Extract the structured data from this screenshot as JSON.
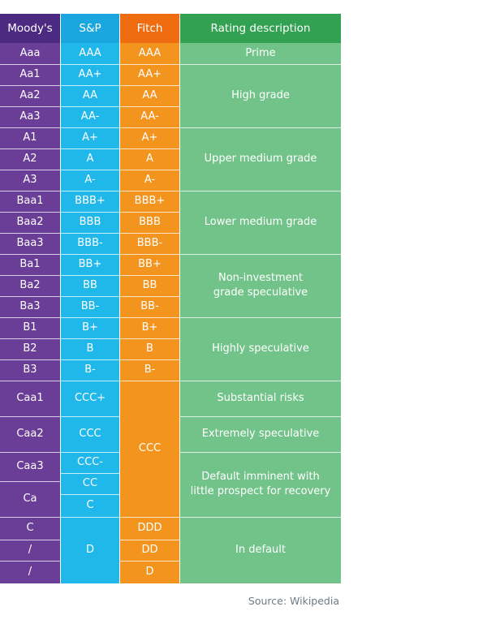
{
  "headers": {
    "moodys": "Moody's",
    "sp": "S&P",
    "fitch": "Fitch",
    "description": "Rating description"
  },
  "moodys": [
    "Aaa",
    "Aa1",
    "Aa2",
    "Aa3",
    "A1",
    "A2",
    "A3",
    "Baa1",
    "Baa2",
    "Baa3",
    "Ba1",
    "Ba2",
    "Ba3",
    "B1",
    "B2",
    "B3",
    "Caa1",
    "Caa2",
    "Caa3",
    "Ca",
    "C",
    "/",
    "/"
  ],
  "sp": [
    "AAA",
    "AA+",
    "AA",
    "AA-",
    "A+",
    "A",
    "A-",
    "BBB+",
    "BBB",
    "BBB-",
    "BB+",
    "BB",
    "BB-",
    "B+",
    "B",
    "B-",
    "CCC+",
    "CCC",
    "CCC-",
    "CC",
    "C",
    "D"
  ],
  "fitch": [
    "AAA",
    "AA+",
    "AA",
    "AA-",
    "A+",
    "A",
    "A-",
    "BBB+",
    "BBB",
    "BBB-",
    "BB+",
    "BB",
    "BB-",
    "B+",
    "B",
    "B-",
    "CCC",
    "DDD",
    "DD",
    "D"
  ],
  "descriptions": [
    "Prime",
    "High grade",
    "Upper medium grade",
    "Lower medium grade",
    "Non-investment\ngrade speculative",
    "Highly speculative",
    "Substantial risks",
    "Extremely speculative",
    "Default imminent with\nlittle prospect for recovery",
    "In default"
  ],
  "source": "Source: Wikipedia",
  "colors": {
    "moodys": "#6a3d96",
    "sp": "#20b8ea",
    "fitch": "#f3941f",
    "description": "#72c38a",
    "moodys_header": "#4c2a82",
    "sp_header": "#1aa7df",
    "fitch_header": "#ef6c11",
    "description_header": "#32a152"
  }
}
